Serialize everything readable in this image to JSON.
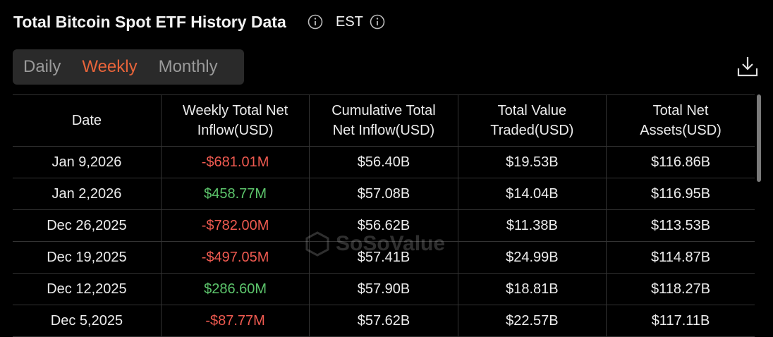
{
  "header": {
    "title": "Total Bitcoin Spot ETF History Data",
    "timezone": "EST"
  },
  "tabs": {
    "items": [
      "Daily",
      "Weekly",
      "Monthly"
    ],
    "active": 1
  },
  "watermark": "SoSoValue",
  "table": {
    "columns": [
      "Date",
      "Weekly Total Net Inflow(USD)",
      "Cumulative Total Net Inflow(USD)",
      "Total Value Traded(USD)",
      "Total Net Assets(USD)"
    ],
    "rows": [
      [
        "Jan 9,2026",
        "-$681.01M",
        "$56.40B",
        "$19.53B",
        "$116.86B"
      ],
      [
        "Jan 2,2026",
        "$458.77M",
        "$57.08B",
        "$14.04B",
        "$116.95B"
      ],
      [
        "Dec 26,2025",
        "-$782.00M",
        "$56.62B",
        "$11.38B",
        "$113.53B"
      ],
      [
        "Dec 19,2025",
        "-$497.05M",
        "$57.41B",
        "$24.99B",
        "$114.87B"
      ],
      [
        "Dec 12,2025",
        "$286.60M",
        "$57.90B",
        "$18.81B",
        "$118.27B"
      ],
      [
        "Dec 5,2025",
        "-$87.77M",
        "$57.62B",
        "$22.57B",
        "$117.11B"
      ]
    ]
  }
}
